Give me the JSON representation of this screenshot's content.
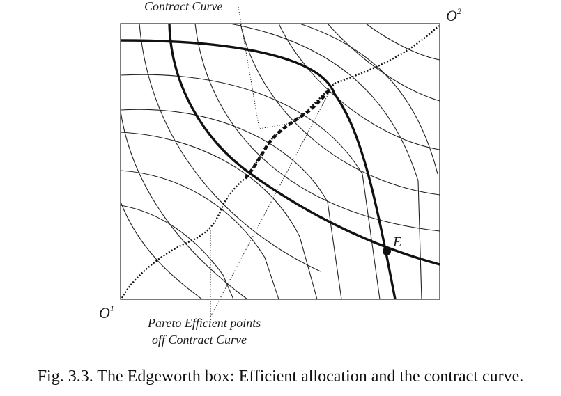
{
  "labels": {
    "contract_curve_top": "Contract Curve",
    "origin_1": "O",
    "origin_1_sup": "1",
    "origin_2": "O",
    "origin_2_sup": "2",
    "point_e": "E",
    "pareto_line1": "Pareto Efficient points",
    "pareto_line2": "off Contract Curve"
  },
  "caption": "Fig. 3.3.  The Edgeworth box: Efficient allocation and the contract curve."
}
